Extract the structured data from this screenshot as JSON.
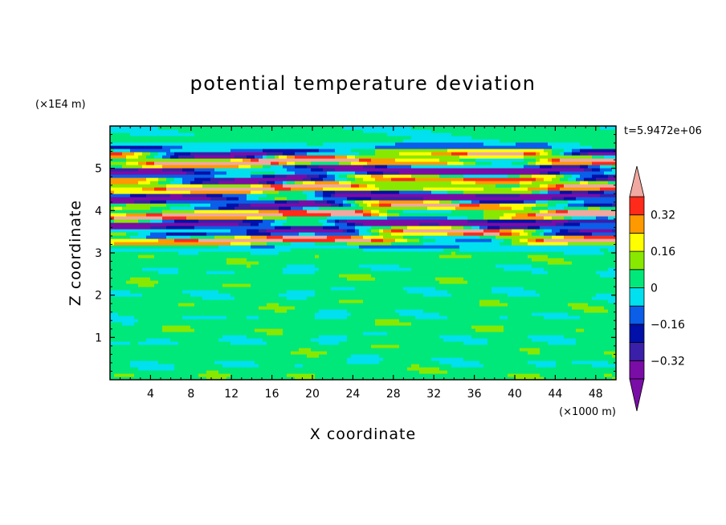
{
  "chart_data": {
    "type": "heatmap",
    "title": "potential temperature deviation",
    "xlabel": "X coordinate",
    "ylabel": "Z coordinate",
    "x_unit": "(×1000 m)",
    "y_unit": "(×1E4 m)",
    "time_label": "t=5.9472e+06",
    "xlim": [
      0,
      50
    ],
    "ylim": [
      0,
      6
    ],
    "x_ticks": [
      4,
      8,
      12,
      16,
      20,
      24,
      28,
      32,
      36,
      40,
      44,
      48
    ],
    "y_ticks": [
      1,
      2,
      3,
      4,
      5
    ],
    "colorbar": {
      "levels": [
        -0.4,
        -0.32,
        -0.24,
        -0.16,
        -0.08,
        0,
        0.08,
        0.16,
        0.24,
        0.32,
        0.4
      ],
      "labels": [
        "0.32",
        "0.16",
        "0",
        "−0.16",
        "−0.32"
      ],
      "label_values": [
        0.32,
        0.16,
        0,
        -0.16,
        -0.32
      ],
      "colors": [
        "#7a0da6",
        "#3a1fa8",
        "#0010a8",
        "#0a5ee8",
        "#00e0ee",
        "#00e87a",
        "#88e800",
        "#ffff00",
        "#ff9900",
        "#ff2a1a",
        "#f0a8a0"
      ],
      "extend": "both"
    },
    "layers": [
      {
        "z_range": [
          0,
          3.2
        ],
        "description_value": "near zero, alternating 0 to 0.08"
      },
      {
        "z_range": [
          3.2,
          5.5
        ],
        "description_value": "strong alternating bands between -0.4 and 0.4"
      },
      {
        "z_range": [
          5.5,
          6
        ],
        "description_value": "near zero"
      }
    ]
  }
}
